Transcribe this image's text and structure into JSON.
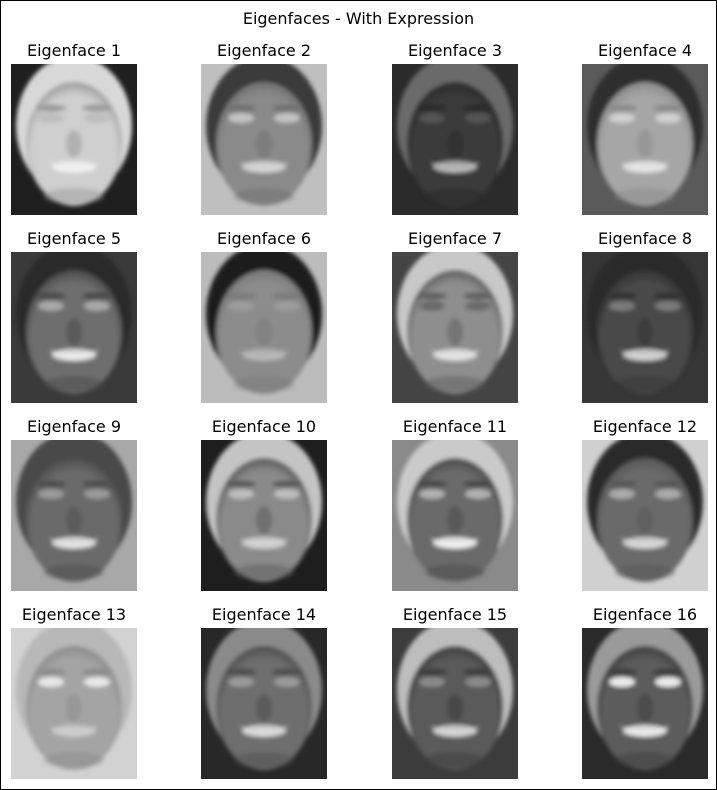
{
  "figure": {
    "title": "Eigenfaces - With Expression"
  },
  "faces": [
    {
      "label": "Eigenface 1",
      "bg": "#1f1f1f",
      "skin": "#cfcfcf",
      "hair": "#d8d8d8",
      "eyes": "#bdbdbd",
      "mouth": "#f2f2f2",
      "shade": "#9a9a9a"
    },
    {
      "label": "Eigenface 2",
      "bg": "#bfbfbf",
      "skin": "#8a8a8a",
      "hair": "#3a3a3a",
      "eyes": "#c2c2c2",
      "mouth": "#d8d8d8",
      "shade": "#707070"
    },
    {
      "label": "Eigenface 3",
      "bg": "#2b2b2b",
      "skin": "#3a3a3a",
      "hair": "#6a6a6a",
      "eyes": "#555555",
      "mouth": "#bdbdbd",
      "shade": "#2a2a2a"
    },
    {
      "label": "Eigenface 4",
      "bg": "#5a5a5a",
      "skin": "#a6a6a6",
      "hair": "#2e2e2e",
      "eyes": "#d0d0d0",
      "mouth": "#e8e8e8",
      "shade": "#8a8a8a"
    },
    {
      "label": "Eigenface 5",
      "bg": "#3a3a3a",
      "skin": "#6e6e6e",
      "hair": "#2a2a2a",
      "eyes": "#a8a8a8",
      "mouth": "#f0f0f0",
      "shade": "#4a4a4a"
    },
    {
      "label": "Eigenface 6",
      "bg": "#bcbcbc",
      "skin": "#8c8c8c",
      "hair": "#1e1e1e",
      "eyes": "#9c9c9c",
      "mouth": "#b8b8b8",
      "shade": "#7a7a7a"
    },
    {
      "label": "Eigenface 7",
      "bg": "#444444",
      "skin": "#8e8e8e",
      "hair": "#c8c8c8",
      "eyes": "#6a6a6a",
      "mouth": "#e6e6e6",
      "shade": "#5e5e5e"
    },
    {
      "label": "Eigenface 8",
      "bg": "#363636",
      "skin": "#4a4a4a",
      "hair": "#2a2a2a",
      "eyes": "#7a7a7a",
      "mouth": "#d8d8d8",
      "shade": "#333333"
    },
    {
      "label": "Eigenface 9",
      "bg": "#a8a8a8",
      "skin": "#6a6a6a",
      "hair": "#4a4a4a",
      "eyes": "#9a9a9a",
      "mouth": "#e8e8e8",
      "shade": "#4e4e4e"
    },
    {
      "label": "Eigenface 10",
      "bg": "#1e1e1e",
      "skin": "#8a8a8a",
      "hair": "#c4c4c4",
      "eyes": "#bdbdbd",
      "mouth": "#d6d6d6",
      "shade": "#5a5a5a"
    },
    {
      "label": "Eigenface 11",
      "bg": "#8a8a8a",
      "skin": "#6a6a6a",
      "hair": "#cacaca",
      "eyes": "#b0b0b0",
      "mouth": "#f4f4f4",
      "shade": "#4a4a4a"
    },
    {
      "label": "Eigenface 12",
      "bg": "#d0d0d0",
      "skin": "#6a6a6a",
      "hair": "#2a2a2a",
      "eyes": "#aaaaaa",
      "mouth": "#dcdcdc",
      "shade": "#585858"
    },
    {
      "label": "Eigenface 13",
      "bg": "#d2d2d2",
      "skin": "#a4a4a4",
      "hair": "#b8b8b8",
      "eyes": "#e8e8e8",
      "mouth": "#cfcfcf",
      "shade": "#8c8c8c"
    },
    {
      "label": "Eigenface 14",
      "bg": "#282828",
      "skin": "#6e6e6e",
      "hair": "#8a8a8a",
      "eyes": "#9a9a9a",
      "mouth": "#e0e0e0",
      "shade": "#4e4e4e"
    },
    {
      "label": "Eigenface 15",
      "bg": "#3c3c3c",
      "skin": "#5a5a5a",
      "hair": "#bdbdbd",
      "eyes": "#8a8a8a",
      "mouth": "#dadada",
      "shade": "#3e3e3e"
    },
    {
      "label": "Eigenface 16",
      "bg": "#2a2a2a",
      "skin": "#5c5c5c",
      "hair": "#9a9a9a",
      "eyes": "#eaeaea",
      "mouth": "#f0f0f0",
      "shade": "#3e3e3e"
    }
  ]
}
